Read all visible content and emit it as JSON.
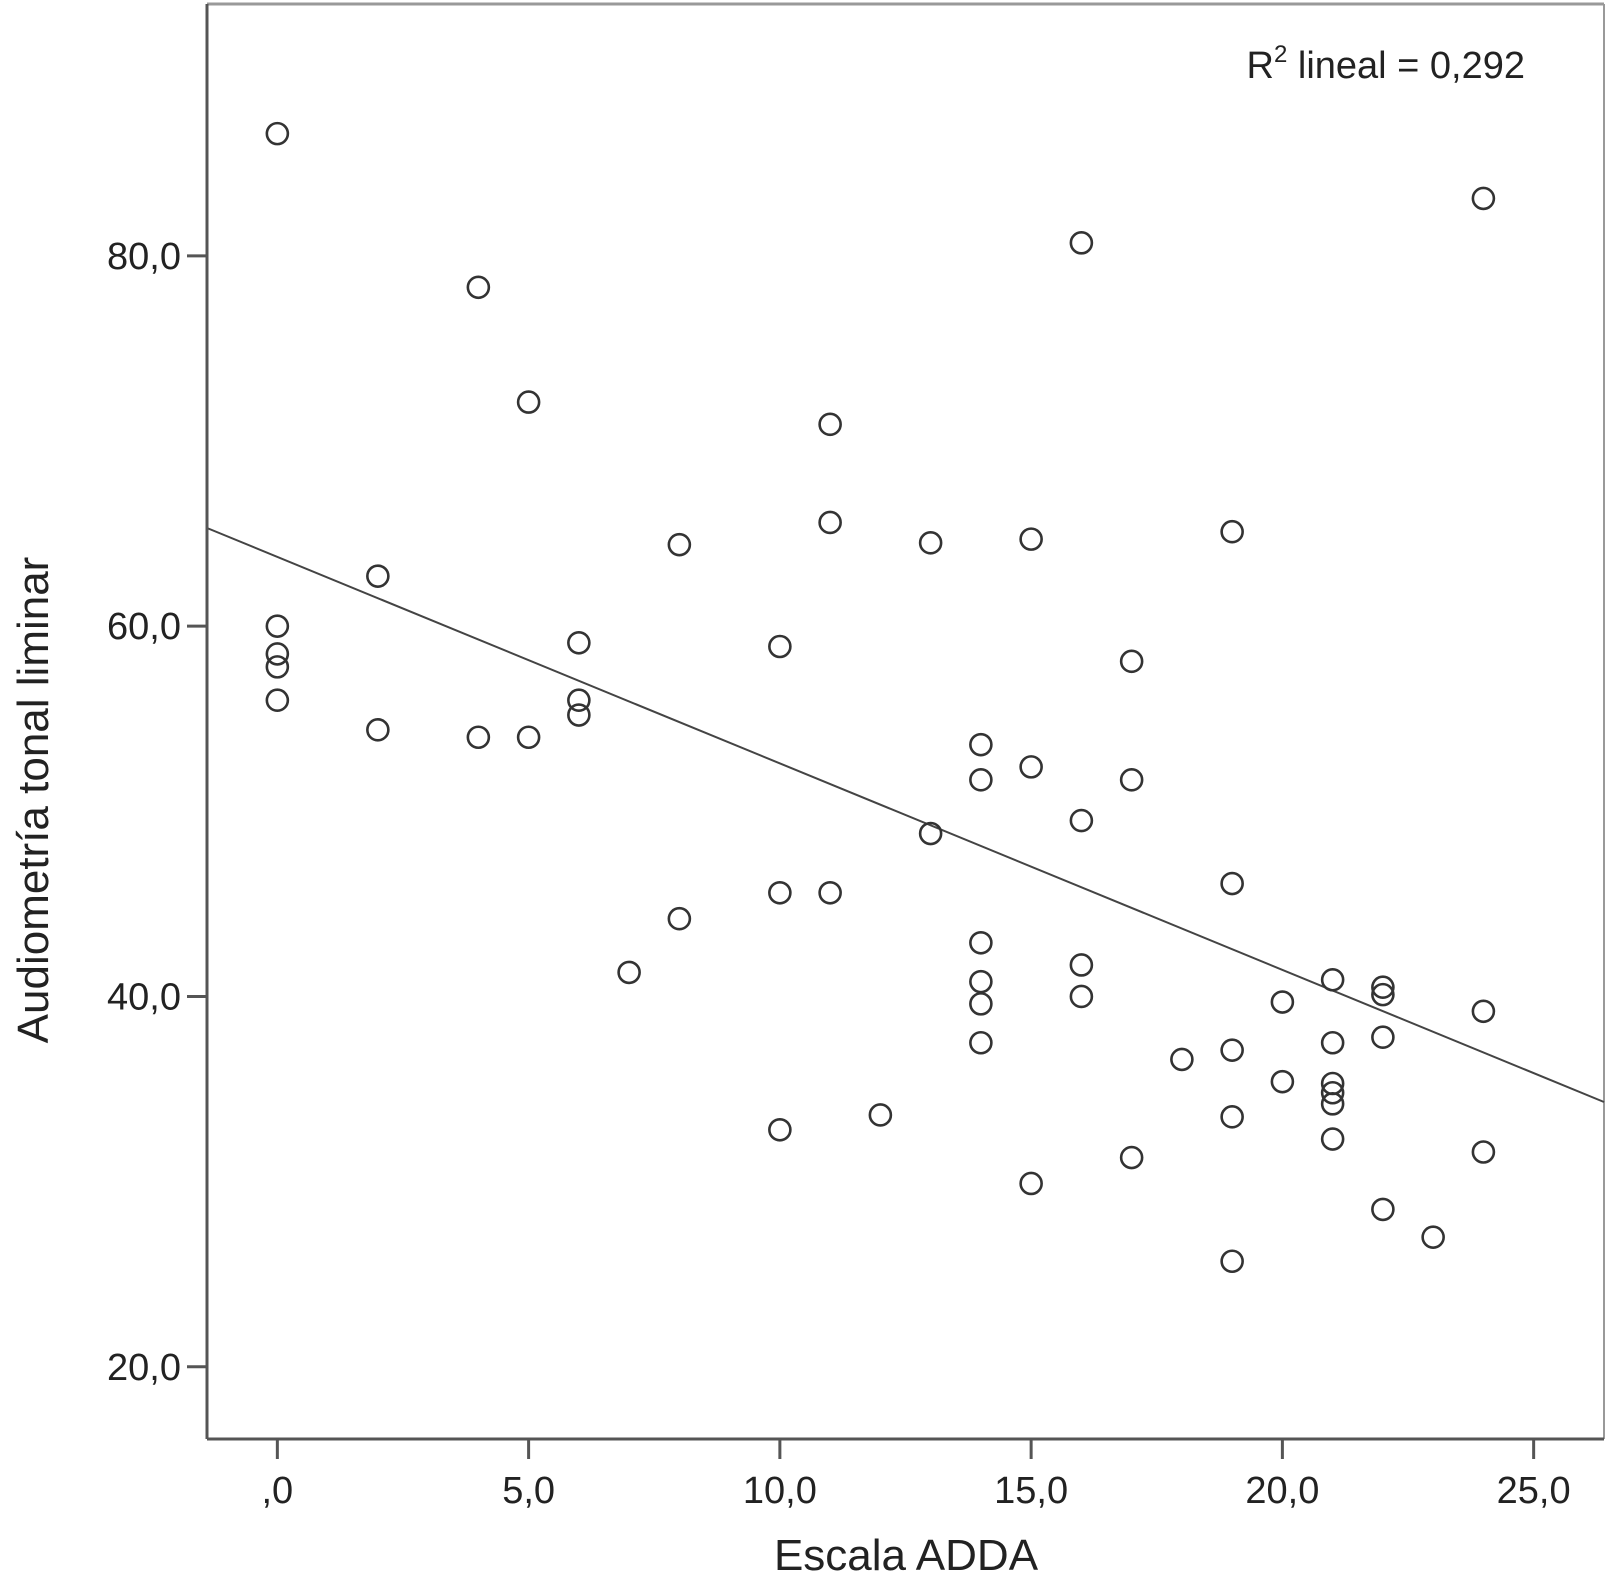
{
  "chart_data": {
    "type": "scatter",
    "title": "",
    "xlabel": "Escala ADDA",
    "ylabel": "Audiometría tonal liminar",
    "xlim": [
      -1.4,
      26.4
    ],
    "ylim": [
      16.1,
      93.6
    ],
    "x_ticks": [
      0,
      5,
      10,
      15,
      20,
      25
    ],
    "x_tick_labels": [
      ",0",
      "5,0",
      "10,0",
      "15,0",
      "20,0",
      "25,0"
    ],
    "y_ticks": [
      20,
      40,
      60,
      80
    ],
    "y_tick_labels": [
      "20,0",
      "40,0",
      "60,0",
      "80,0"
    ],
    "grid": false,
    "legend": "none",
    "annotation": {
      "prefix": "R",
      "superscript": "2",
      "text": " lineal = 0,292",
      "position": "top-right"
    },
    "fit_line": {
      "x": [
        -1.4,
        26.4
      ],
      "y": [
        65.3,
        34.3
      ]
    },
    "colors": {
      "points": "#333333",
      "line": "#444444",
      "axes": "#555555",
      "frame": "#999999"
    },
    "points": [
      {
        "x": 0,
        "y": 86.6
      },
      {
        "x": 0,
        "y": 60.0
      },
      {
        "x": 0,
        "y": 58.5
      },
      {
        "x": 0,
        "y": 57.8
      },
      {
        "x": 0,
        "y": 56.0
      },
      {
        "x": 2,
        "y": 62.7
      },
      {
        "x": 2,
        "y": 54.4
      },
      {
        "x": 4,
        "y": 78.3
      },
      {
        "x": 4,
        "y": 54.0
      },
      {
        "x": 5,
        "y": 72.1
      },
      {
        "x": 5,
        "y": 54.0
      },
      {
        "x": 6,
        "y": 59.1
      },
      {
        "x": 6,
        "y": 56.0
      },
      {
        "x": 6,
        "y": 55.2
      },
      {
        "x": 7,
        "y": 41.3
      },
      {
        "x": 8,
        "y": 64.4
      },
      {
        "x": 8,
        "y": 44.2
      },
      {
        "x": 10,
        "y": 58.9
      },
      {
        "x": 10,
        "y": 45.6
      },
      {
        "x": 10,
        "y": 32.8
      },
      {
        "x": 11,
        "y": 70.9
      },
      {
        "x": 11,
        "y": 65.6
      },
      {
        "x": 11,
        "y": 45.6
      },
      {
        "x": 12,
        "y": 33.6
      },
      {
        "x": 13,
        "y": 64.5
      },
      {
        "x": 13,
        "y": 48.8
      },
      {
        "x": 14,
        "y": 53.6
      },
      {
        "x": 14,
        "y": 51.7
      },
      {
        "x": 14,
        "y": 42.9
      },
      {
        "x": 14,
        "y": 40.8
      },
      {
        "x": 14,
        "y": 39.6
      },
      {
        "x": 14,
        "y": 37.5
      },
      {
        "x": 15,
        "y": 64.7
      },
      {
        "x": 15,
        "y": 52.4
      },
      {
        "x": 15,
        "y": 29.9
      },
      {
        "x": 16,
        "y": 80.7
      },
      {
        "x": 16,
        "y": 49.5
      },
      {
        "x": 16,
        "y": 41.7
      },
      {
        "x": 16,
        "y": 40.0
      },
      {
        "x": 17,
        "y": 58.1
      },
      {
        "x": 17,
        "y": 51.7
      },
      {
        "x": 17,
        "y": 31.3
      },
      {
        "x": 18,
        "y": 36.6
      },
      {
        "x": 19,
        "y": 65.1
      },
      {
        "x": 19,
        "y": 46.1
      },
      {
        "x": 19,
        "y": 37.1
      },
      {
        "x": 19,
        "y": 33.5
      },
      {
        "x": 19,
        "y": 25.7
      },
      {
        "x": 20,
        "y": 39.7
      },
      {
        "x": 20,
        "y": 35.4
      },
      {
        "x": 21,
        "y": 40.9
      },
      {
        "x": 21,
        "y": 37.5
      },
      {
        "x": 21,
        "y": 35.3
      },
      {
        "x": 21,
        "y": 34.8
      },
      {
        "x": 21,
        "y": 34.2
      },
      {
        "x": 21,
        "y": 32.3
      },
      {
        "x": 22,
        "y": 40.5
      },
      {
        "x": 22,
        "y": 40.1
      },
      {
        "x": 22,
        "y": 37.8
      },
      {
        "x": 22,
        "y": 28.5
      },
      {
        "x": 23,
        "y": 27.0
      },
      {
        "x": 24,
        "y": 83.1
      },
      {
        "x": 24,
        "y": 39.2
      },
      {
        "x": 24,
        "y": 31.6
      }
    ]
  }
}
